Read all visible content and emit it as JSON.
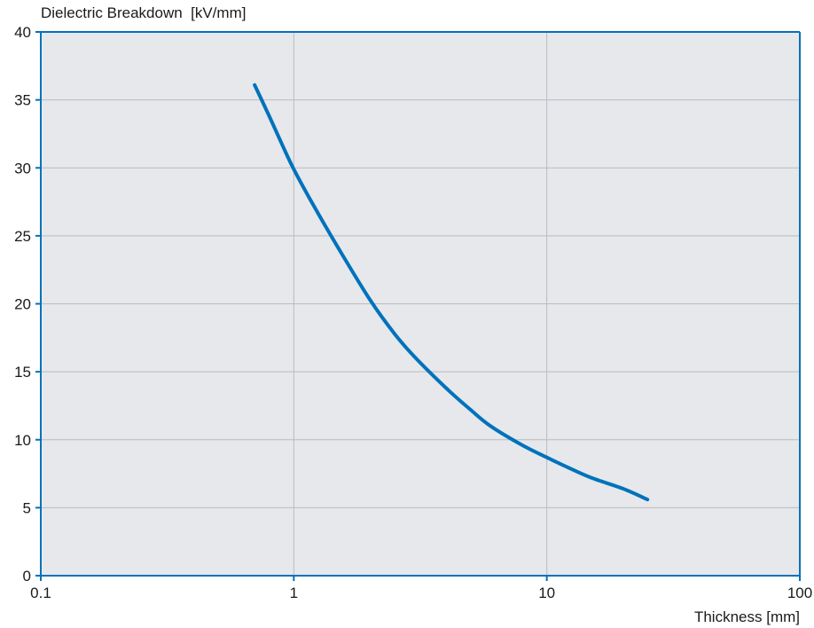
{
  "chart_data": {
    "type": "line",
    "xlabel": "Thickness [mm]",
    "ylabel": "Dielectric Breakdown  [kV/mm]",
    "x_scale": "log",
    "xlim": [
      0.1,
      100
    ],
    "ylim": [
      0,
      40
    ],
    "x_ticks": [
      "0.1",
      "1",
      "10",
      "100"
    ],
    "y_ticks": [
      "0",
      "5",
      "10",
      "15",
      "20",
      "25",
      "30",
      "35",
      "40"
    ],
    "grid": true,
    "colors": {
      "plot_background": "#e6e8eb",
      "axis": "#0072bc",
      "grid": "#b9bcc0",
      "line": "#0072bc"
    },
    "series": [
      {
        "x": [
          0.7,
          0.8,
          0.9,
          1.0,
          1.2,
          1.5,
          2.0,
          2.5,
          3.0,
          4.0,
          5.0,
          6.0,
          8.0,
          10.0,
          12.0,
          15.0,
          20.0,
          25.0
        ],
        "y": [
          36.1,
          33.8,
          31.7,
          29.9,
          27.2,
          24.1,
          20.3,
          17.8,
          16.1,
          13.8,
          12.2,
          11.0,
          9.6,
          8.7,
          8.0,
          7.2,
          6.4,
          5.6
        ]
      }
    ]
  }
}
